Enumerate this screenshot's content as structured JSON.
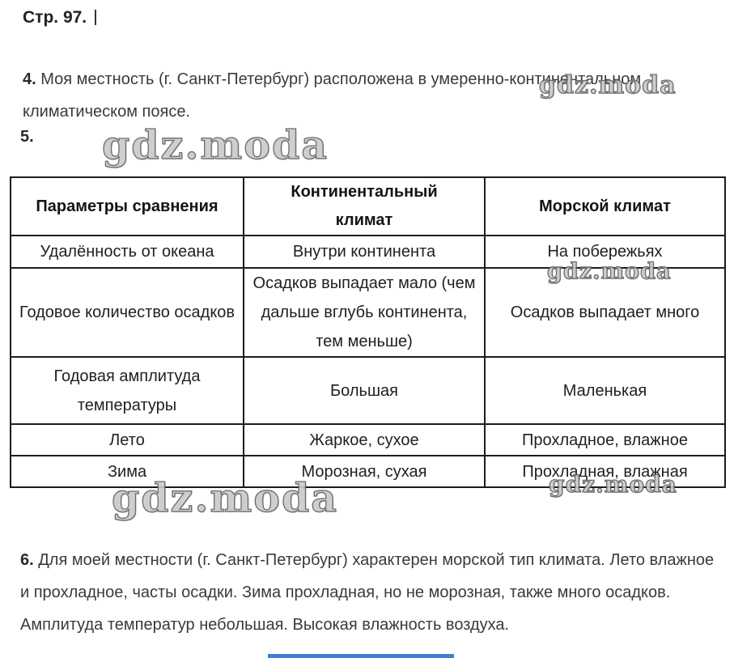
{
  "page": {
    "header": "Стр. 97."
  },
  "watermark": {
    "text": "gdz.moda"
  },
  "items": {
    "item4": {
      "number": "4.",
      "text": "Моя местность (г. Санкт-Петербург) расположена в умеренно-континентальном климатическом поясе."
    },
    "item5": {
      "number": "5."
    },
    "item6": {
      "number": "6.",
      "text": "Для моей местности (г. Санкт-Петербург) характерен морской тип климата. Лето влажное и прохладное, часты осадки. Зима прохладная, но не морозная, также много осадков. Амплитуда температур небольшая. Высокая влажность воздуха."
    }
  },
  "table": {
    "headers": [
      "Параметры сравнения",
      "Континентальный климат",
      "Морской климат"
    ],
    "rows": [
      [
        "Удалённость от океана",
        "Внутри континента",
        "На побережьях"
      ],
      [
        "Годовое количество осадков",
        "Осадков выпадает мало (чем дальше вглубь континента, тем меньше)",
        "Осадков выпадает много"
      ],
      [
        "Годовая амплитуда температуры",
        "Большая",
        "Маленькая"
      ],
      [
        "Лето",
        "Жаркое, сухое",
        "Прохладное, влажное"
      ],
      [
        "Зима",
        "Морозная, сухая",
        "Прохладная, влажная"
      ]
    ]
  }
}
